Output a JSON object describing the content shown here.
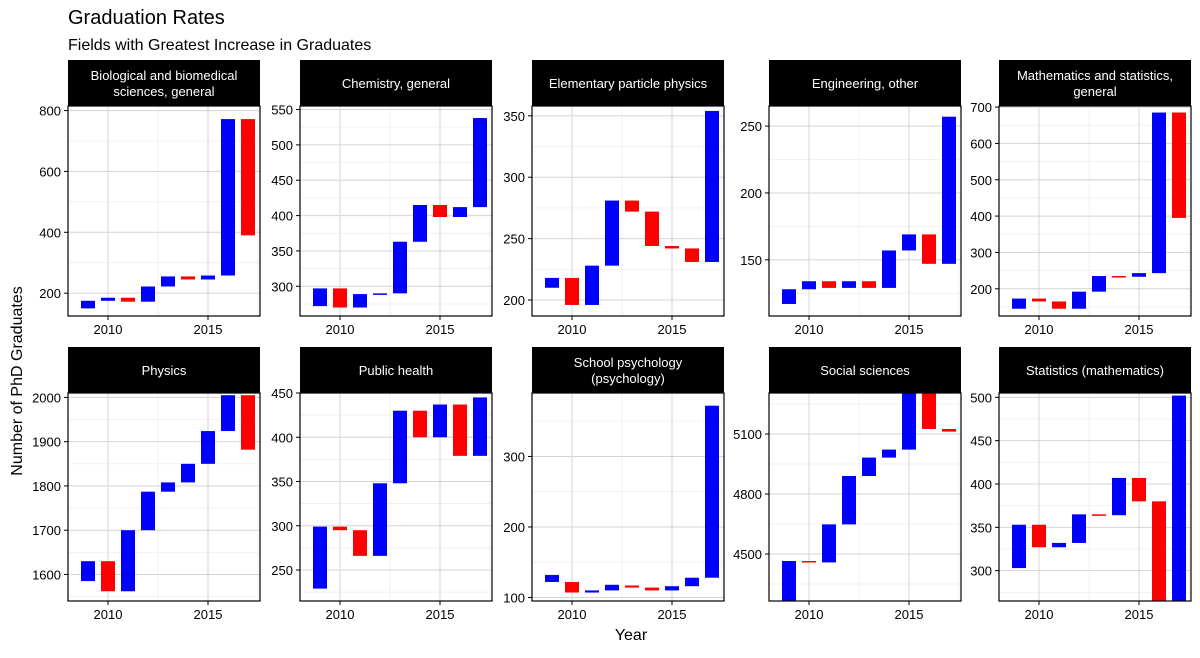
{
  "chart_data": {
    "type": "waterfall",
    "title": "Graduation Rates",
    "subtitle": "Fields with Greatest Increase in Graduates",
    "xlabel": "Year",
    "ylabel": "Number of PhD Graduates",
    "x_ticks": [
      2010,
      2015
    ],
    "x_range": [
      2008,
      2017.6
    ],
    "colors": {
      "increase": "#0000ff",
      "decrease": "#ff0000"
    },
    "grid": true,
    "panels": [
      {
        "title": "Biological and biomedical sciences, general",
        "title_lines": [
          "Biological and biomedical",
          "sciences, general"
        ],
        "ylim": [
          125,
          815
        ],
        "y_ticks": [
          200,
          400,
          600,
          800
        ],
        "bars": [
          {
            "year": 2009,
            "start": 150,
            "end": 175
          },
          {
            "year": 2010,
            "start": 175,
            "end": 185
          },
          {
            "year": 2011,
            "start": 185,
            "end": 172
          },
          {
            "year": 2012,
            "start": 172,
            "end": 222
          },
          {
            "year": 2013,
            "start": 222,
            "end": 255
          },
          {
            "year": 2014,
            "start": 255,
            "end": 245
          },
          {
            "year": 2015,
            "start": 245,
            "end": 258
          },
          {
            "year": 2016,
            "start": 258,
            "end": 772
          },
          {
            "year": 2017,
            "start": 772,
            "end": 390
          }
        ]
      },
      {
        "title": "Chemistry, general",
        "title_lines": [
          "Chemistry, general"
        ],
        "ylim": [
          258,
          555
        ],
        "y_ticks": [
          300,
          350,
          400,
          450,
          500,
          550
        ],
        "bars": [
          {
            "year": 2009,
            "start": 272,
            "end": 297
          },
          {
            "year": 2010,
            "start": 297,
            "end": 270
          },
          {
            "year": 2011,
            "start": 270,
            "end": 289
          },
          {
            "year": 2012,
            "start": 289,
            "end": 290
          },
          {
            "year": 2013,
            "start": 290,
            "end": 363
          },
          {
            "year": 2014,
            "start": 363,
            "end": 415
          },
          {
            "year": 2015,
            "start": 415,
            "end": 398
          },
          {
            "year": 2016,
            "start": 398,
            "end": 412
          },
          {
            "year": 2017,
            "start": 412,
            "end": 538
          }
        ]
      },
      {
        "title": "Elementary particle physics",
        "title_lines": [
          "Elementary particle physics"
        ],
        "ylim": [
          187,
          358
        ],
        "y_ticks": [
          200,
          250,
          300,
          350
        ],
        "bars": [
          {
            "year": 2009,
            "start": 210,
            "end": 218
          },
          {
            "year": 2010,
            "start": 218,
            "end": 196
          },
          {
            "year": 2011,
            "start": 196,
            "end": 228
          },
          {
            "year": 2012,
            "start": 228,
            "end": 281
          },
          {
            "year": 2013,
            "start": 281,
            "end": 272
          },
          {
            "year": 2014,
            "start": 272,
            "end": 244
          },
          {
            "year": 2015,
            "start": 244,
            "end": 242
          },
          {
            "year": 2016,
            "start": 242,
            "end": 231
          },
          {
            "year": 2017,
            "start": 231,
            "end": 354
          }
        ]
      },
      {
        "title": "Engineering, other",
        "title_lines": [
          "Engineering, other"
        ],
        "ylim": [
          108,
          265
        ],
        "y_ticks": [
          150,
          200,
          250
        ],
        "bars": [
          {
            "year": 2009,
            "start": 117,
            "end": 128
          },
          {
            "year": 2010,
            "start": 128,
            "end": 134
          },
          {
            "year": 2011,
            "start": 134,
            "end": 129
          },
          {
            "year": 2012,
            "start": 129,
            "end": 134
          },
          {
            "year": 2013,
            "start": 134,
            "end": 129
          },
          {
            "year": 2014,
            "start": 129,
            "end": 157
          },
          {
            "year": 2015,
            "start": 157,
            "end": 169
          },
          {
            "year": 2016,
            "start": 169,
            "end": 147
          },
          {
            "year": 2017,
            "start": 147,
            "end": 257
          }
        ]
      },
      {
        "title": "Mathematics and statistics, general",
        "title_lines": [
          "Mathematics and statistics,",
          "general"
        ],
        "ylim": [
          125,
          703
        ],
        "y_ticks": [
          200,
          300,
          400,
          500,
          600,
          700
        ],
        "bars": [
          {
            "year": 2009,
            "start": 145,
            "end": 173
          },
          {
            "year": 2010,
            "start": 173,
            "end": 165
          },
          {
            "year": 2011,
            "start": 165,
            "end": 145
          },
          {
            "year": 2012,
            "start": 145,
            "end": 192
          },
          {
            "year": 2013,
            "start": 192,
            "end": 235
          },
          {
            "year": 2014,
            "start": 235,
            "end": 233
          },
          {
            "year": 2015,
            "start": 233,
            "end": 243
          },
          {
            "year": 2016,
            "start": 243,
            "end": 685
          },
          {
            "year": 2017,
            "start": 685,
            "end": 395
          }
        ]
      },
      {
        "title": "Physics",
        "title_lines": [
          "Physics"
        ],
        "ylim": [
          1540,
          2010
        ],
        "y_ticks": [
          1600,
          1700,
          1800,
          1900,
          2000
        ],
        "bars": [
          {
            "year": 2009,
            "start": 1585,
            "end": 1630
          },
          {
            "year": 2010,
            "start": 1630,
            "end": 1562
          },
          {
            "year": 2011,
            "start": 1562,
            "end": 1700
          },
          {
            "year": 2012,
            "start": 1700,
            "end": 1787
          },
          {
            "year": 2013,
            "start": 1787,
            "end": 1808
          },
          {
            "year": 2014,
            "start": 1808,
            "end": 1850
          },
          {
            "year": 2015,
            "start": 1850,
            "end": 1924
          },
          {
            "year": 2016,
            "start": 1924,
            "end": 2005
          },
          {
            "year": 2017,
            "start": 2005,
            "end": 1882
          }
        ]
      },
      {
        "title": "Public health",
        "title_lines": [
          "Public health"
        ],
        "ylim": [
          215,
          450
        ],
        "y_ticks": [
          250,
          300,
          350,
          400,
          450
        ],
        "bars": [
          {
            "year": 2009,
            "start": 229,
            "end": 299
          },
          {
            "year": 2010,
            "start": 299,
            "end": 295
          },
          {
            "year": 2011,
            "start": 295,
            "end": 266
          },
          {
            "year": 2012,
            "start": 266,
            "end": 348
          },
          {
            "year": 2013,
            "start": 348,
            "end": 430
          },
          {
            "year": 2014,
            "start": 430,
            "end": 400
          },
          {
            "year": 2015,
            "start": 400,
            "end": 437
          },
          {
            "year": 2016,
            "start": 437,
            "end": 379
          },
          {
            "year": 2017,
            "start": 379,
            "end": 445
          }
        ]
      },
      {
        "title": "School psychology (psychology)",
        "title_lines": [
          "School psychology",
          "(psychology)"
        ],
        "ylim": [
          95,
          390
        ],
        "y_ticks": [
          100,
          200,
          300
        ],
        "bars": [
          {
            "year": 2009,
            "start": 122,
            "end": 132
          },
          {
            "year": 2010,
            "start": 122,
            "end": 107
          },
          {
            "year": 2011,
            "start": 107,
            "end": 110
          },
          {
            "year": 2012,
            "start": 110,
            "end": 118
          },
          {
            "year": 2013,
            "start": 117,
            "end": 114
          },
          {
            "year": 2014,
            "start": 114,
            "end": 110
          },
          {
            "year": 2015,
            "start": 110,
            "end": 116
          },
          {
            "year": 2016,
            "start": 116,
            "end": 128
          },
          {
            "year": 2017,
            "start": 128,
            "end": 372
          }
        ]
      },
      {
        "title": "Social sciences",
        "title_lines": [
          "Social sciences"
        ],
        "ylim": [
          4265,
          5305
        ],
        "y_ticks": [
          4500,
          4800,
          5100
        ],
        "bars": [
          {
            "year": 2009,
            "start": 4265,
            "end": 4465
          },
          {
            "year": 2010,
            "start": 4465,
            "end": 4458
          },
          {
            "year": 2011,
            "start": 4458,
            "end": 4648
          },
          {
            "year": 2012,
            "start": 4648,
            "end": 4890
          },
          {
            "year": 2013,
            "start": 4890,
            "end": 4982
          },
          {
            "year": 2014,
            "start": 4982,
            "end": 5022
          },
          {
            "year": 2015,
            "start": 5022,
            "end": 5305
          },
          {
            "year": 2016,
            "start": 5305,
            "end": 5125
          },
          {
            "year": 2017,
            "start": 5125,
            "end": 5112
          }
        ]
      },
      {
        "title": "Statistics (mathematics)",
        "title_lines": [
          "Statistics (mathematics)"
        ],
        "ylim": [
          265,
          505
        ],
        "y_ticks": [
          300,
          350,
          400,
          450,
          500
        ],
        "bars": [
          {
            "year": 2009,
            "start": 303,
            "end": 353
          },
          {
            "year": 2010,
            "start": 353,
            "end": 327
          },
          {
            "year": 2011,
            "start": 327,
            "end": 332
          },
          {
            "year": 2012,
            "start": 332,
            "end": 365
          },
          {
            "year": 2013,
            "start": 365,
            "end": 364
          },
          {
            "year": 2014,
            "start": 364,
            "end": 407
          },
          {
            "year": 2015,
            "start": 407,
            "end": 380
          },
          {
            "year": 2016,
            "start": 380,
            "end": 265
          },
          {
            "year": 2017,
            "start": 265,
            "end": 502
          }
        ]
      }
    ]
  }
}
